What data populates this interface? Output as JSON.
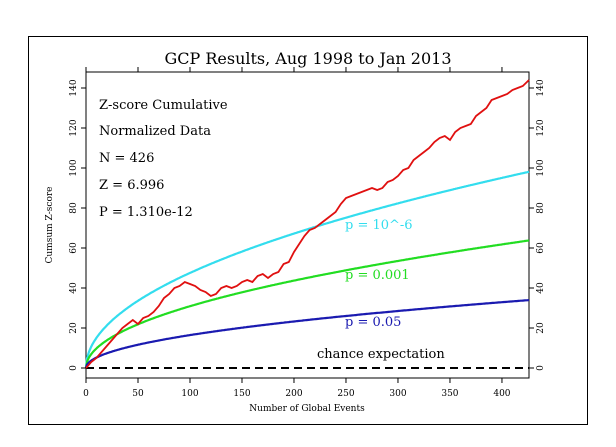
{
  "chart_data": {
    "type": "line",
    "title": "GCP Results, Aug 1998 to Jan 2013",
    "xlabel": "Number of Global Events",
    "ylabel": "Cumsum Z-score",
    "xlim": [
      0,
      426
    ],
    "ylim": [
      -5,
      148
    ],
    "x_ticks": [
      0,
      50,
      100,
      150,
      200,
      250,
      300,
      350,
      400
    ],
    "y_ticks": [
      0,
      20,
      40,
      60,
      80,
      100,
      120,
      140
    ],
    "grid": false,
    "stats": {
      "line1": "Z-score Cumulative",
      "line2": "Normalized Data",
      "line3": "N = 426",
      "line4": "Z = 6.996",
      "line5": "P = 1.310e-12"
    },
    "annotations": {
      "p6": "p = 10^-6",
      "p001": "p = 0.001",
      "p05": "p = 0.05",
      "chance": "chance expectation"
    },
    "series": [
      {
        "color": "#e01010",
        "x": [
          0,
          5,
          10,
          15,
          20,
          25,
          30,
          35,
          40,
          45,
          50,
          55,
          60,
          65,
          70,
          75,
          80,
          85,
          90,
          95,
          100,
          105,
          110,
          115,
          120,
          125,
          130,
          135,
          140,
          145,
          150,
          155,
          160,
          165,
          170,
          175,
          180,
          185,
          190,
          195,
          200,
          205,
          210,
          215,
          220,
          225,
          230,
          235,
          240,
          245,
          250,
          255,
          260,
          265,
          270,
          275,
          280,
          285,
          290,
          295,
          300,
          305,
          310,
          315,
          320,
          325,
          330,
          335,
          340,
          345,
          350,
          355,
          360,
          365,
          370,
          375,
          380,
          385,
          390,
          395,
          400,
          405,
          410,
          415,
          420,
          426
        ],
        "y": [
          0,
          3,
          5,
          8,
          11,
          14,
          17,
          20,
          22,
          24,
          22,
          25,
          26,
          28,
          31,
          35,
          37,
          40,
          41,
          43,
          42,
          41,
          39,
          38,
          36,
          37,
          40,
          41,
          40,
          41,
          43,
          44,
          43,
          46,
          47,
          45,
          47,
          48,
          52,
          53,
          58,
          62,
          66,
          69,
          70,
          72,
          74,
          76,
          78,
          82,
          85,
          86,
          87,
          88,
          89,
          90,
          89,
          90,
          93,
          94,
          96,
          99,
          100,
          104,
          106,
          108,
          110,
          113,
          115,
          116,
          114,
          118,
          120,
          121,
          122,
          126,
          128,
          130,
          134,
          135,
          136,
          137,
          139,
          140,
          141,
          144
        ]
      },
      {
        "name": "p = 10^-6",
        "color": "#33ddee",
        "formula": "4.753*sqrt(n)",
        "z": 4.753
      },
      {
        "name": "p = 0.001",
        "color": "#22dd22",
        "formula": "3.09*sqrt(n)",
        "z": 3.09
      },
      {
        "name": "p = 0.05",
        "color": "#1a1ab0",
        "formula": "1.645*sqrt(n)",
        "z": 1.645
      },
      {
        "name": "chance expectation",
        "color": "#000000",
        "style": "dashed",
        "value": 0
      }
    ]
  }
}
